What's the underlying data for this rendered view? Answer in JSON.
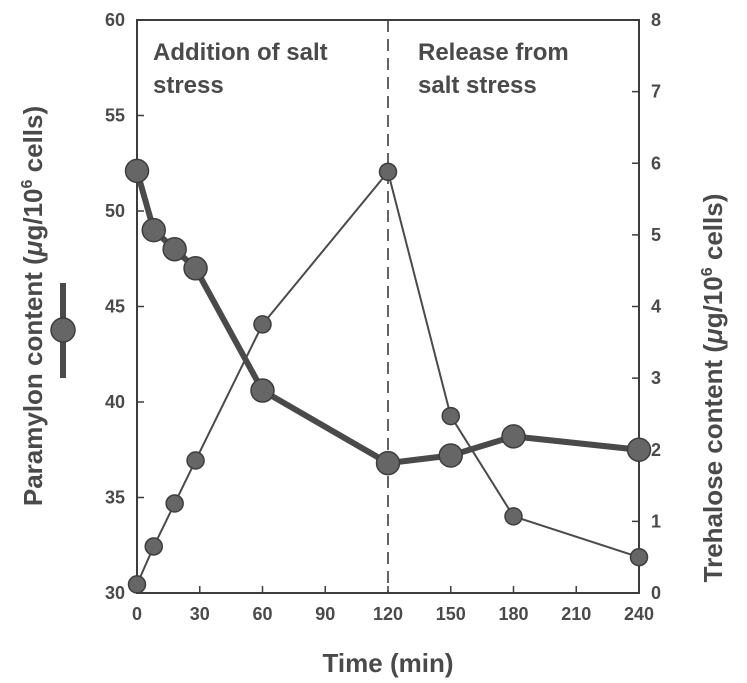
{
  "chart_data": {
    "type": "line",
    "xlabel": "Time (min)",
    "ylabel_left_parts": [
      "Paramylon content (",
      "μ",
      "g/10",
      "6",
      " cells)"
    ],
    "ylabel_right_parts": [
      "Trehalose content (",
      "μ",
      "g/10",
      "6",
      " cells)"
    ],
    "xlim": [
      0,
      240
    ],
    "ylim_left": [
      30,
      60
    ],
    "ylim_right": [
      0,
      8
    ],
    "x_ticks": [
      0,
      30,
      60,
      90,
      120,
      150,
      180,
      210,
      240
    ],
    "y_ticks_left": [
      30,
      35,
      40,
      45,
      50,
      55,
      60
    ],
    "y_ticks_right": [
      0,
      1,
      2,
      3,
      4,
      5,
      6,
      7,
      8
    ],
    "divider_x": 120,
    "annotations": [
      {
        "lines": [
          "Addition of salt",
          "stress"
        ]
      },
      {
        "lines": [
          "Release from",
          "salt stress"
        ]
      }
    ],
    "series": [
      {
        "axis": "left",
        "x": [
          0,
          8,
          18,
          28,
          60,
          120,
          150,
          180,
          240
        ],
        "y": [
          52.1,
          49.0,
          48.0,
          47.0,
          40.6,
          36.8,
          37.2,
          38.2,
          37.5
        ]
      },
      {
        "axis": "right",
        "x": [
          0,
          8,
          18,
          28,
          60,
          120,
          150,
          180,
          240
        ],
        "y": [
          0.12,
          0.65,
          1.25,
          1.85,
          3.75,
          5.88,
          2.47,
          1.07,
          0.5
        ]
      }
    ],
    "colors": {
      "line": "#4a4a4a",
      "marker": "#666666",
      "marker_edge": "#3d3d3d"
    }
  }
}
